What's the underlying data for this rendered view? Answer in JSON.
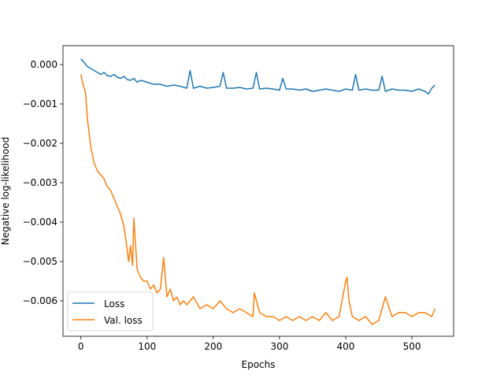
{
  "chart_data": {
    "type": "line",
    "title": "",
    "xlabel": "Epochs",
    "ylabel": "Negative log-likelihood",
    "xlim": [
      -27,
      563
    ],
    "ylim": [
      -0.0069,
      0.00048
    ],
    "xticks": [
      0,
      100,
      200,
      300,
      400,
      500
    ],
    "xtick_labels": [
      "0",
      "100",
      "200",
      "300",
      "400",
      "500"
    ],
    "yticks": [
      -0.006,
      -0.005,
      -0.004,
      -0.003,
      -0.002,
      -0.001,
      0.0
    ],
    "ytick_labels": [
      "−0.006",
      "−0.005",
      "−0.004",
      "−0.003",
      "−0.002",
      "−0.001",
      "0.000"
    ],
    "grid": false,
    "legend_position": "lower-left",
    "series": [
      {
        "name": "Loss",
        "color": "#1f77b4",
        "x": [
          0,
          5,
          10,
          15,
          20,
          25,
          30,
          35,
          40,
          45,
          50,
          55,
          60,
          65,
          70,
          75,
          80,
          85,
          90,
          95,
          100,
          110,
          120,
          130,
          140,
          150,
          160,
          165,
          170,
          180,
          190,
          200,
          210,
          215,
          220,
          230,
          240,
          250,
          260,
          265,
          270,
          280,
          290,
          300,
          305,
          310,
          320,
          330,
          340,
          350,
          360,
          370,
          380,
          390,
          400,
          410,
          415,
          420,
          430,
          440,
          450,
          455,
          460,
          470,
          480,
          490,
          500,
          510,
          520,
          525,
          530,
          535
        ],
        "values": [
          0.00015,
          5e-05,
          -5e-05,
          -0.0001,
          -0.00015,
          -0.0002,
          -0.00025,
          -0.0002,
          -0.00028,
          -0.0003,
          -0.00025,
          -0.00032,
          -0.00035,
          -0.0003,
          -0.00038,
          -0.0004,
          -0.00035,
          -0.00045,
          -0.0004,
          -0.00042,
          -0.00045,
          -0.0005,
          -0.0005,
          -0.00055,
          -0.00052,
          -0.00055,
          -0.0006,
          -0.00015,
          -0.0006,
          -0.00055,
          -0.0006,
          -0.00058,
          -0.00055,
          -0.0002,
          -0.0006,
          -0.0006,
          -0.00058,
          -0.00062,
          -0.0006,
          -0.0002,
          -0.00062,
          -0.0006,
          -0.00062,
          -0.00065,
          -0.00035,
          -0.00062,
          -0.00062,
          -0.00065,
          -0.00062,
          -0.00068,
          -0.00065,
          -0.00062,
          -0.00065,
          -0.00068,
          -0.00062,
          -0.00065,
          -0.00025,
          -0.00065,
          -0.00062,
          -0.00065,
          -0.00065,
          -0.0003,
          -0.00068,
          -0.00062,
          -0.00065,
          -0.00065,
          -0.00068,
          -0.00062,
          -0.00068,
          -0.00075,
          -0.0006,
          -0.00052
        ]
      },
      {
        "name": "Val. loss",
        "color": "#ff7f0e",
        "x": [
          0,
          3,
          5,
          7,
          10,
          15,
          20,
          25,
          30,
          35,
          40,
          45,
          50,
          55,
          60,
          65,
          70,
          72,
          75,
          78,
          80,
          85,
          90,
          95,
          100,
          105,
          110,
          115,
          120,
          125,
          130,
          135,
          140,
          145,
          150,
          155,
          160,
          170,
          180,
          190,
          200,
          210,
          220,
          230,
          240,
          250,
          260,
          262,
          270,
          280,
          290,
          300,
          310,
          320,
          330,
          340,
          350,
          360,
          370,
          380,
          390,
          400,
          402,
          405,
          410,
          420,
          430,
          440,
          450,
          460,
          470,
          480,
          490,
          500,
          510,
          520,
          530,
          535
        ],
        "values": [
          -0.00025,
          -0.0005,
          -0.0006,
          -0.0007,
          -0.0014,
          -0.0021,
          -0.0025,
          -0.0027,
          -0.0028,
          -0.0029,
          -0.0031,
          -0.0032,
          -0.0034,
          -0.0036,
          -0.0038,
          -0.0041,
          -0.0047,
          -0.005,
          -0.0046,
          -0.0051,
          -0.0039,
          -0.0052,
          -0.0054,
          -0.0055,
          -0.0055,
          -0.0057,
          -0.0056,
          -0.0058,
          -0.0057,
          -0.0049,
          -0.0059,
          -0.0057,
          -0.006,
          -0.0059,
          -0.0061,
          -0.006,
          -0.0061,
          -0.0059,
          -0.0062,
          -0.0061,
          -0.0062,
          -0.006,
          -0.0062,
          -0.0063,
          -0.0062,
          -0.0063,
          -0.0064,
          -0.0058,
          -0.0063,
          -0.0064,
          -0.0064,
          -0.0065,
          -0.0064,
          -0.0065,
          -0.0064,
          -0.0065,
          -0.0064,
          -0.0065,
          -0.0063,
          -0.0065,
          -0.0064,
          -0.0055,
          -0.0054,
          -0.006,
          -0.0064,
          -0.0065,
          -0.0064,
          -0.0066,
          -0.0065,
          -0.0059,
          -0.0064,
          -0.0063,
          -0.0063,
          -0.0064,
          -0.0063,
          -0.0063,
          -0.0064,
          -0.0062
        ]
      }
    ]
  }
}
